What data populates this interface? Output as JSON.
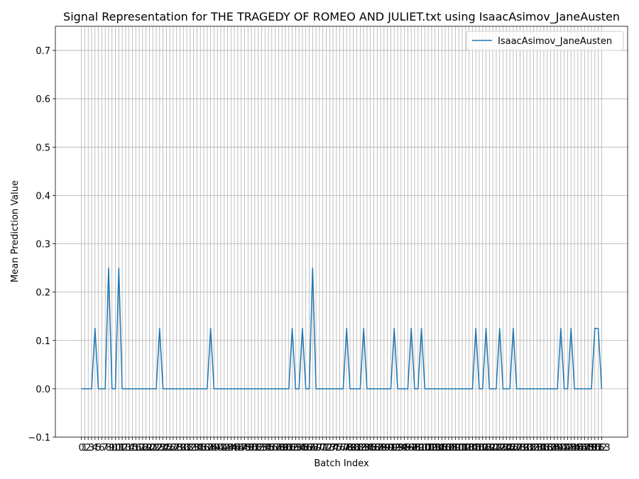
{
  "chart_data": {
    "type": "line",
    "title": "Signal Representation for THE TRAGEDY OF ROMEO AND JULIET.txt using IsaacAsimov_JaneAusten",
    "x_label": "Batch Index",
    "y_label": "Mean Prediction Value",
    "x": [
      0,
      1,
      2,
      3,
      4,
      5,
      6,
      7,
      8,
      9,
      10,
      11,
      12,
      13,
      14,
      15,
      16,
      17,
      18,
      19,
      20,
      21,
      22,
      23,
      24,
      25,
      26,
      27,
      28,
      29,
      30,
      31,
      32,
      33,
      34,
      35,
      36,
      37,
      38,
      39,
      40,
      41,
      42,
      43,
      44,
      45,
      46,
      47,
      48,
      49,
      50,
      51,
      52,
      53,
      54,
      55,
      56,
      57,
      58,
      59,
      60,
      61,
      62,
      63,
      64,
      65,
      66,
      67,
      68,
      69,
      70,
      71,
      72,
      73,
      74,
      75,
      76,
      77,
      78,
      79,
      80,
      81,
      82,
      83,
      84,
      85,
      86,
      87,
      88,
      89,
      90,
      91,
      92,
      93,
      94,
      95,
      96,
      97,
      98,
      99,
      100,
      101,
      102,
      103,
      104,
      105,
      106,
      107,
      108,
      109,
      110,
      111,
      112,
      113,
      114,
      115,
      116,
      117,
      118,
      119,
      120,
      121,
      122,
      123,
      124,
      125,
      126,
      127,
      128,
      129,
      130,
      131,
      132,
      133,
      134,
      135,
      136,
      137,
      138,
      139,
      140,
      141,
      142,
      143,
      144,
      145,
      146,
      147,
      148,
      149,
      150,
      151,
      152,
      153
    ],
    "series": [
      {
        "name": "IsaacAsimov_JaneAusten",
        "color": "#1f77b4",
        "values": [
          0,
          0,
          0,
          0,
          0.125,
          0,
          0,
          0,
          0.25,
          0,
          0,
          0.25,
          0,
          0,
          0,
          0,
          0,
          0,
          0,
          0,
          0,
          0,
          0,
          0.125,
          0,
          0,
          0,
          0,
          0,
          0,
          0,
          0,
          0,
          0,
          0,
          0,
          0,
          0,
          0.125,
          0,
          0,
          0,
          0,
          0,
          0,
          0,
          0,
          0,
          0,
          0,
          0,
          0,
          0,
          0,
          0,
          0,
          0,
          0,
          0,
          0,
          0,
          0,
          0.125,
          0,
          0,
          0.125,
          0,
          0,
          0.25,
          0,
          0,
          0,
          0,
          0,
          0,
          0,
          0,
          0,
          0.125,
          0,
          0,
          0,
          0,
          0.125,
          0,
          0,
          0,
          0,
          0,
          0,
          0,
          0,
          0.125,
          0,
          0,
          0,
          0,
          0.125,
          0,
          0,
          0.125,
          0,
          0,
          0,
          0,
          0,
          0,
          0,
          0,
          0,
          0,
          0,
          0,
          0,
          0,
          0,
          0.125,
          0,
          0,
          0.125,
          0,
          0,
          0,
          0.125,
          0,
          0,
          0,
          0.125,
          0,
          0,
          0,
          0,
          0,
          0,
          0,
          0,
          0,
          0,
          0,
          0,
          0,
          0.125,
          0,
          0,
          0.125,
          0,
          0,
          0,
          0,
          0,
          0,
          0.125,
          0.125,
          0
        ]
      }
    ],
    "xlim": [
      -7.65,
      160.65
    ],
    "xticks": [
      0,
      1,
      2,
      3,
      4,
      5,
      6,
      7,
      8,
      9,
      10,
      11,
      12,
      13,
      14,
      15,
      16,
      17,
      18,
      19,
      20,
      21,
      22,
      23,
      24,
      25,
      26,
      27,
      28,
      29,
      30,
      31,
      32,
      33,
      34,
      35,
      36,
      37,
      38,
      39,
      40,
      41,
      42,
      43,
      44,
      45,
      46,
      47,
      48,
      49,
      50,
      51,
      52,
      53,
      54,
      55,
      56,
      57,
      58,
      59,
      60,
      61,
      62,
      63,
      64,
      65,
      66,
      67,
      68,
      69,
      70,
      71,
      72,
      73,
      74,
      75,
      76,
      77,
      78,
      79,
      80,
      81,
      82,
      83,
      84,
      85,
      86,
      87,
      88,
      89,
      90,
      91,
      92,
      93,
      94,
      95,
      96,
      97,
      98,
      99,
      100,
      101,
      102,
      103,
      104,
      105,
      106,
      107,
      108,
      109,
      110,
      111,
      112,
      113,
      114,
      115,
      116,
      117,
      118,
      119,
      120,
      121,
      122,
      123,
      124,
      125,
      126,
      127,
      128,
      129,
      130,
      131,
      132,
      133,
      134,
      135,
      136,
      137,
      138,
      139,
      140,
      141,
      142,
      143,
      144,
      145,
      146,
      147,
      148,
      149,
      150,
      151,
      152,
      153
    ],
    "ylim": [
      -0.1,
      0.75
    ],
    "yticks": [
      {
        "value": -0.1,
        "label": "−0.1"
      },
      {
        "value": 0,
        "label": "0.0"
      },
      0.1,
      0.2,
      0.3,
      0.4,
      0.5,
      0.6,
      0.7
    ],
    "grid": true,
    "legend": "upper right"
  }
}
